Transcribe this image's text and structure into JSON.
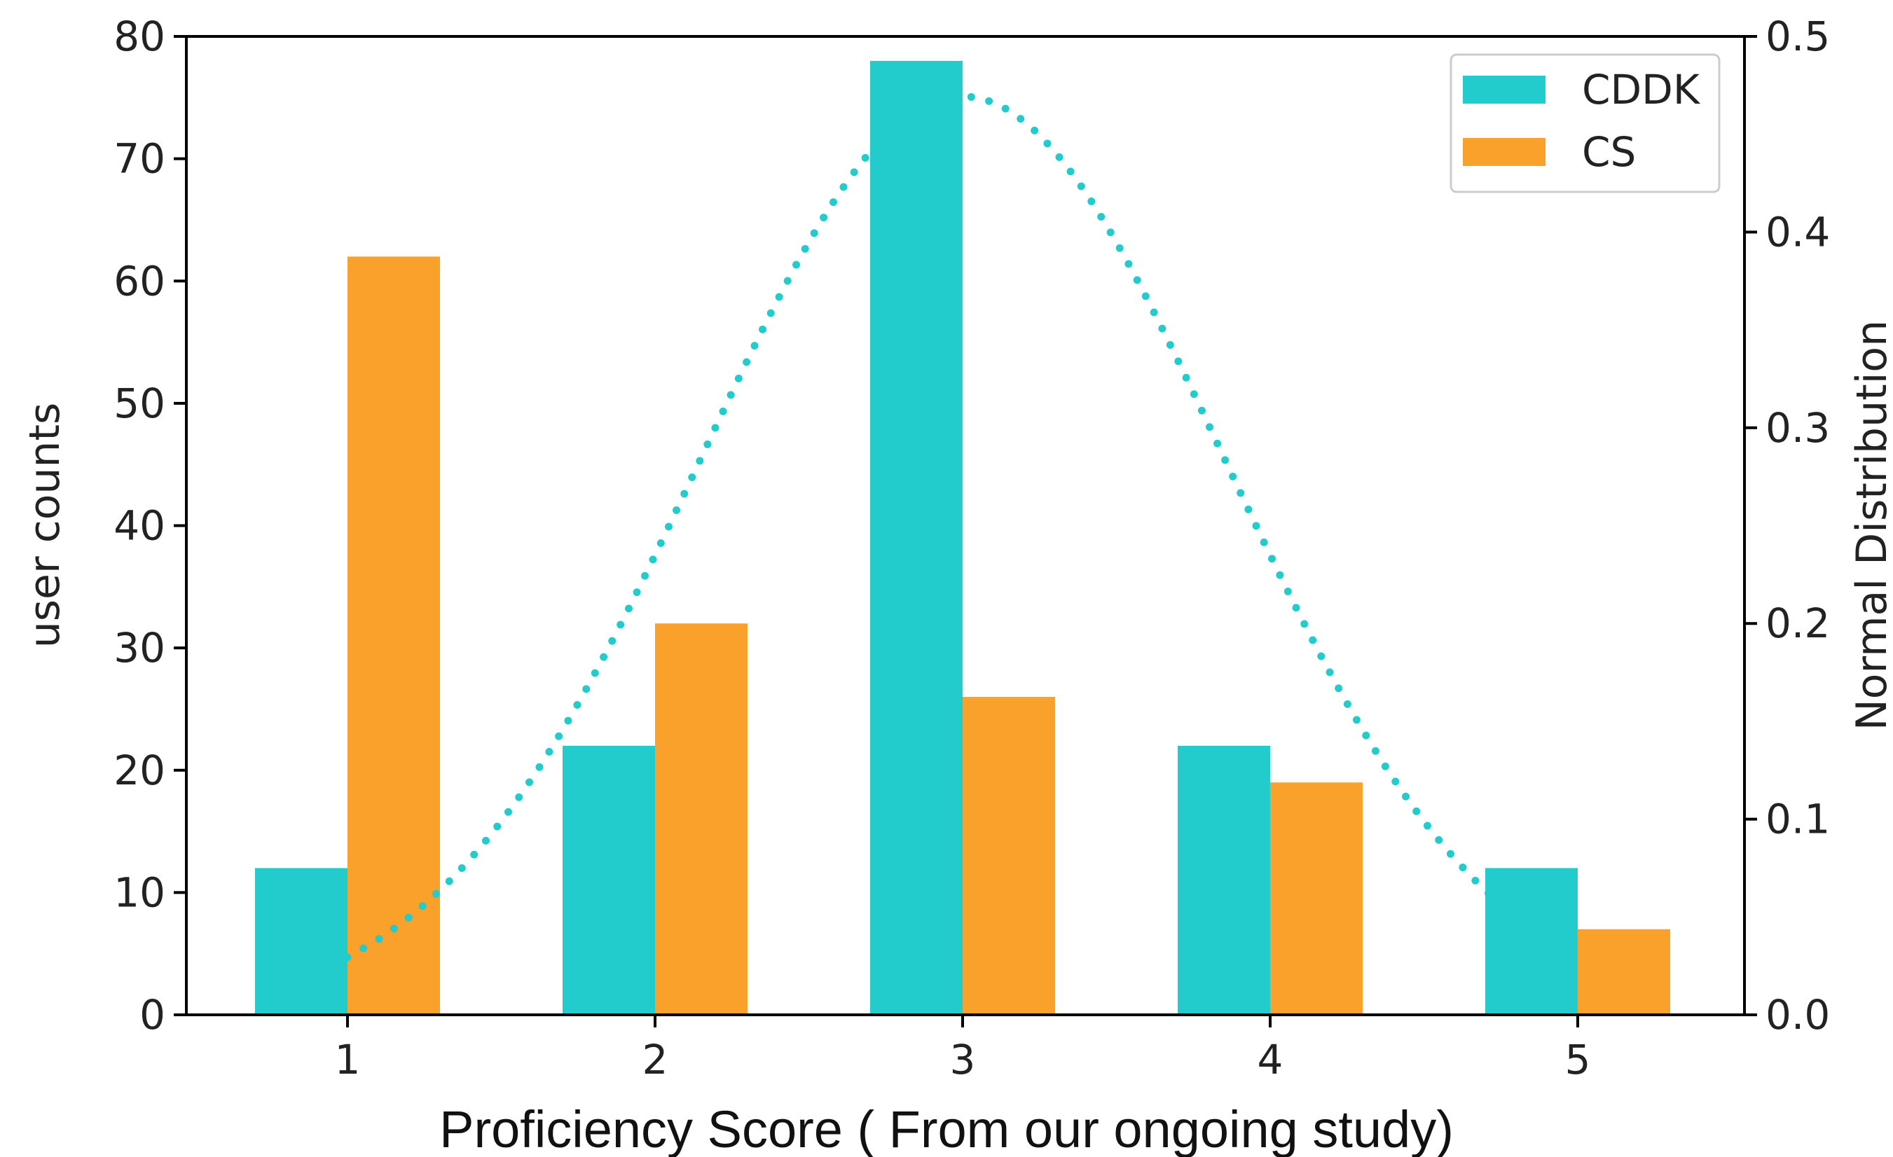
{
  "chart_data": {
    "type": "bar",
    "title": "",
    "xlabel": "Proficiency Score ( From our ongoing study)",
    "ylabel": "user counts",
    "y2label": "Normal Distribution",
    "categories": [
      "1",
      "2",
      "3",
      "4",
      "5"
    ],
    "ylim": [
      0,
      80
    ],
    "yticks": [
      "0",
      "10",
      "20",
      "30",
      "40",
      "50",
      "60",
      "70",
      "80"
    ],
    "y2lim": [
      0.0,
      0.5
    ],
    "y2ticks": [
      "0.0",
      "0.1",
      "0.2",
      "0.3",
      "0.4",
      "0.5"
    ],
    "grid": false,
    "legend_position": "top-right",
    "series": [
      {
        "name": "CDDK",
        "color": "#22cccc",
        "values": [
          12,
          22,
          78,
          22,
          12
        ]
      },
      {
        "name": "CS",
        "color": "#f9a12b",
        "values": [
          62,
          32,
          26,
          19,
          7
        ]
      }
    ],
    "curve": {
      "axis": "right",
      "style": "dotted",
      "color": "#22cccc",
      "mean": 3.0,
      "std": 0.85,
      "x_range": [
        1,
        4.8
      ]
    }
  }
}
